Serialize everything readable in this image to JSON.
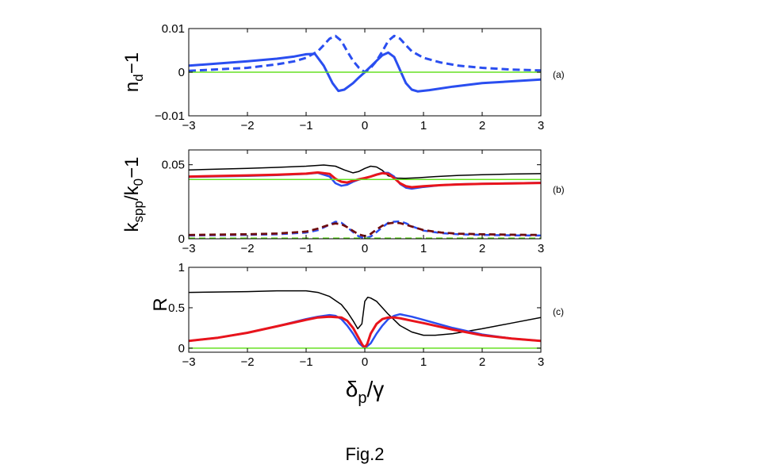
{
  "figure_caption": "Fig.2",
  "colors": {
    "blue": "#2a4ef0",
    "red": "#e8141c",
    "black": "#000000",
    "green": "#66e022",
    "darkred": "#6b0f0f"
  },
  "chart_data": [
    {
      "id": "a",
      "type": "line",
      "panel_label": "(a)",
      "ylabel_main": "n",
      "ylabel_sub": "d",
      "ylabel_tail": "−1",
      "xlim": [
        -3,
        3
      ],
      "ylim": [
        -0.01,
        0.01
      ],
      "xticks": [
        -3,
        -2,
        -1,
        0,
        1,
        2,
        3
      ],
      "xtick_labels": [
        "−3",
        "−2",
        "−1",
        "0",
        "1",
        "2",
        "3"
      ],
      "yticks": [
        -0.01,
        0,
        0.01
      ],
      "ytick_labels": [
        "−0.01",
        "0",
        "0.01"
      ],
      "series": [
        {
          "name": "blue-solid",
          "color": "blue",
          "width": 3,
          "dash": "",
          "x": [
            -3,
            -2,
            -1.5,
            -1.2,
            -1,
            -0.85,
            -0.7,
            -0.55,
            -0.45,
            -0.35,
            -0.2,
            -0.1,
            0,
            0.1,
            0.2,
            0.3,
            0.4,
            0.5,
            0.6,
            0.7,
            0.8,
            0.9,
            1.1,
            1.5,
            2,
            3
          ],
          "y": [
            0.0015,
            0.0025,
            0.0031,
            0.0036,
            0.0041,
            0.0042,
            0.0015,
            -0.0025,
            -0.0043,
            -0.004,
            -0.0025,
            -0.0012,
            0,
            0.0013,
            0.0026,
            0.0039,
            0.0045,
            0.0035,
            0.0005,
            -0.0025,
            -0.004,
            -0.0044,
            -0.0041,
            -0.0033,
            -0.0025,
            -0.0017
          ]
        },
        {
          "name": "blue-dashed",
          "color": "blue",
          "width": 3,
          "dash": "9,5",
          "x": [
            -3,
            -2,
            -1.5,
            -1.2,
            -1,
            -0.8,
            -0.7,
            -0.6,
            -0.5,
            -0.4,
            -0.3,
            -0.2,
            -0.1,
            0,
            0.1,
            0.2,
            0.3,
            0.4,
            0.5,
            0.6,
            0.7,
            0.8,
            1,
            1.3,
            1.6,
            2,
            2.5,
            3
          ],
          "y": [
            0.0003,
            0.001,
            0.0018,
            0.0025,
            0.0033,
            0.0048,
            0.0062,
            0.0077,
            0.0083,
            0.0072,
            0.0048,
            0.0026,
            0.001,
            0,
            0.001,
            0.0026,
            0.0048,
            0.0072,
            0.0083,
            0.0077,
            0.0062,
            0.0048,
            0.0033,
            0.0022,
            0.0015,
            0.001,
            0.0006,
            0.0004
          ]
        },
        {
          "name": "green",
          "color": "green",
          "width": 1.5,
          "dash": "",
          "x": [
            -3,
            3
          ],
          "y": [
            0,
            0
          ]
        }
      ]
    },
    {
      "id": "b",
      "type": "line",
      "panel_label": "(b)",
      "ylabel_main": "k",
      "ylabel_sub": "spp",
      "ylabel_mid": "/k",
      "ylabel_sub2": "0",
      "ylabel_tail": "−1",
      "xlim": [
        -3,
        3
      ],
      "ylim": [
        0,
        0.06
      ],
      "xticks": [
        -3,
        -2,
        -1,
        0,
        1,
        2,
        3
      ],
      "xtick_labels": [
        "−3",
        "−2",
        "−1",
        "0",
        "1",
        "2",
        "3"
      ],
      "yticks": [
        0,
        0.05
      ],
      "ytick_labels": [
        "0",
        "0.05"
      ],
      "series": [
        {
          "name": "black-solid",
          "color": "black",
          "width": 1.5,
          "dash": "",
          "x": [
            -3,
            -2,
            -1.5,
            -1,
            -0.7,
            -0.5,
            -0.35,
            -0.2,
            -0.1,
            0,
            0.1,
            0.2,
            0.3,
            0.4,
            0.55,
            0.7,
            0.9,
            1.2,
            1.6,
            2,
            2.5,
            3
          ],
          "y": [
            0.0465,
            0.0475,
            0.0482,
            0.049,
            0.0498,
            0.049,
            0.0465,
            0.0445,
            0.0455,
            0.0475,
            0.049,
            0.0485,
            0.0462,
            0.0425,
            0.041,
            0.0408,
            0.0412,
            0.042,
            0.0428,
            0.0433,
            0.0437,
            0.044
          ]
        },
        {
          "name": "blue-solid",
          "color": "blue",
          "width": 2.5,
          "dash": "",
          "x": [
            -3,
            -2,
            -1.5,
            -1,
            -0.8,
            -0.6,
            -0.5,
            -0.4,
            -0.3,
            -0.2,
            -0.1,
            0,
            0.1,
            0.2,
            0.3,
            0.4,
            0.5,
            0.6,
            0.7,
            0.8,
            1,
            1.3,
            1.6,
            2,
            2.5,
            3
          ],
          "y": [
            0.0418,
            0.0425,
            0.043,
            0.0438,
            0.0445,
            0.042,
            0.0375,
            0.0358,
            0.0365,
            0.0385,
            0.04,
            0.041,
            0.042,
            0.0435,
            0.0445,
            0.0445,
            0.042,
            0.037,
            0.0345,
            0.0338,
            0.035,
            0.0362,
            0.0368,
            0.0372,
            0.0375,
            0.0378
          ]
        },
        {
          "name": "red-solid",
          "color": "red",
          "width": 3,
          "dash": "",
          "x": [
            -3,
            -2,
            -1.5,
            -1,
            -0.8,
            -0.6,
            -0.5,
            -0.4,
            -0.3,
            -0.2,
            -0.1,
            0,
            0.1,
            0.2,
            0.3,
            0.4,
            0.5,
            0.6,
            0.7,
            0.8,
            1,
            1.3,
            1.6,
            2,
            2.5,
            3
          ],
          "y": [
            0.042,
            0.0428,
            0.0433,
            0.044,
            0.0448,
            0.0438,
            0.0405,
            0.0385,
            0.038,
            0.0392,
            0.0402,
            0.041,
            0.042,
            0.0433,
            0.0443,
            0.0438,
            0.041,
            0.0375,
            0.0355,
            0.0348,
            0.0355,
            0.0362,
            0.0367,
            0.0371,
            0.0374,
            0.0377
          ]
        },
        {
          "name": "green-solid",
          "color": "green",
          "width": 1.5,
          "dash": "",
          "x": [
            -3,
            3
          ],
          "y": [
            0.04,
            0.04
          ]
        },
        {
          "name": "blue-dashed",
          "color": "blue",
          "width": 2.5,
          "dash": "8,5",
          "x": [
            -3,
            -2,
            -1.5,
            -1,
            -0.8,
            -0.6,
            -0.5,
            -0.4,
            -0.3,
            -0.2,
            -0.1,
            0,
            0.1,
            0.2,
            0.3,
            0.4,
            0.5,
            0.6,
            0.7,
            0.8,
            1,
            1.3,
            1.6,
            2,
            2.5,
            3
          ],
          "y": [
            0.0022,
            0.0026,
            0.003,
            0.0042,
            0.0058,
            0.0095,
            0.0115,
            0.0108,
            0.0078,
            0.0045,
            0.0015,
            0.0004,
            0.0015,
            0.0045,
            0.0078,
            0.0108,
            0.0115,
            0.0118,
            0.0105,
            0.0085,
            0.0055,
            0.0038,
            0.003,
            0.0026,
            0.0023,
            0.0022
          ]
        },
        {
          "name": "red-dashed",
          "color": "red",
          "width": 2.5,
          "dash": "8,5",
          "x": [
            -3,
            -2,
            -1.5,
            -1,
            -0.8,
            -0.6,
            -0.5,
            -0.4,
            -0.3,
            -0.2,
            -0.1,
            0,
            0.1,
            0.2,
            0.3,
            0.4,
            0.5,
            0.6,
            0.7,
            0.8,
            1,
            1.3,
            1.6,
            2,
            2.5,
            3
          ],
          "y": [
            0.0025,
            0.003,
            0.0035,
            0.0048,
            0.0068,
            0.0095,
            0.0103,
            0.0098,
            0.0078,
            0.0052,
            0.0028,
            0.0018,
            0.0032,
            0.0062,
            0.0088,
            0.0103,
            0.0108,
            0.0105,
            0.0095,
            0.0082,
            0.0058,
            0.0042,
            0.0034,
            0.003,
            0.0027,
            0.0025
          ]
        },
        {
          "name": "darkred-dashed",
          "color": "darkred",
          "width": 2.5,
          "dash": "8,5",
          "x": [
            -3,
            -2,
            -1.5,
            -1,
            -0.8,
            -0.6,
            -0.5,
            -0.4,
            -0.3,
            -0.2,
            -0.1,
            0,
            0.1,
            0.2,
            0.3,
            0.4,
            0.5,
            0.6,
            0.7,
            0.8,
            1,
            1.3,
            1.6,
            2,
            2.5,
            3
          ],
          "y": [
            0.0026,
            0.0031,
            0.0036,
            0.0049,
            0.0069,
            0.0096,
            0.0104,
            0.0099,
            0.0079,
            0.0053,
            0.0029,
            0.0019,
            0.0033,
            0.0063,
            0.0089,
            0.0104,
            0.0109,
            0.0106,
            0.0096,
            0.0083,
            0.0059,
            0.0043,
            0.0035,
            0.0031,
            0.0028,
            0.0026
          ]
        },
        {
          "name": "green-dashed",
          "color": "green",
          "width": 1.5,
          "dash": "8,5",
          "x": [
            -3,
            3
          ],
          "y": [
            0.0005,
            0.0005
          ]
        }
      ]
    },
    {
      "id": "c",
      "type": "line",
      "panel_label": "(c)",
      "ylabel_main": "R",
      "xlabel_main": "δ",
      "xlabel_sub": "p",
      "xlabel_tail": "/γ",
      "xlim": [
        -3,
        3
      ],
      "ylim": [
        -0.05,
        1
      ],
      "xticks": [
        -3,
        -2,
        -1,
        0,
        1,
        2,
        3
      ],
      "xtick_labels": [
        "−3",
        "−2",
        "−1",
        "0",
        "1",
        "2",
        "3"
      ],
      "yticks": [
        0,
        0.5,
        1
      ],
      "ytick_labels": [
        "0",
        "0.5",
        "1"
      ],
      "series": [
        {
          "name": "black-solid",
          "color": "black",
          "width": 1.5,
          "dash": "",
          "x": [
            -3,
            -2,
            -1.5,
            -1,
            -0.8,
            -0.6,
            -0.4,
            -0.3,
            -0.2,
            -0.12,
            -0.05,
            0,
            0.05,
            0.1,
            0.2,
            0.3,
            0.4,
            0.5,
            0.6,
            0.8,
            1,
            1.2,
            1.5,
            2,
            2.5,
            3
          ],
          "y": [
            0.69,
            0.7,
            0.71,
            0.71,
            0.69,
            0.64,
            0.54,
            0.45,
            0.34,
            0.24,
            0.3,
            0.58,
            0.63,
            0.62,
            0.58,
            0.5,
            0.42,
            0.35,
            0.28,
            0.2,
            0.16,
            0.16,
            0.18,
            0.24,
            0.31,
            0.38
          ]
        },
        {
          "name": "blue-solid",
          "color": "blue",
          "width": 2.5,
          "dash": "",
          "x": [
            -3,
            -2.5,
            -2,
            -1.5,
            -1,
            -0.8,
            -0.6,
            -0.5,
            -0.4,
            -0.3,
            -0.2,
            -0.1,
            0,
            0.1,
            0.2,
            0.3,
            0.4,
            0.5,
            0.6,
            0.8,
            1,
            1.5,
            2,
            2.5,
            3
          ],
          "y": [
            0.09,
            0.13,
            0.19,
            0.27,
            0.36,
            0.39,
            0.41,
            0.4,
            0.36,
            0.28,
            0.18,
            0.06,
            0,
            0.06,
            0.18,
            0.28,
            0.36,
            0.4,
            0.42,
            0.39,
            0.35,
            0.25,
            0.17,
            0.12,
            0.09
          ]
        },
        {
          "name": "red-solid",
          "color": "red",
          "width": 3,
          "dash": "",
          "x": [
            -3,
            -2.5,
            -2,
            -1.5,
            -1,
            -0.8,
            -0.6,
            -0.4,
            -0.3,
            -0.2,
            -0.1,
            -0.04,
            0,
            0.04,
            0.1,
            0.2,
            0.3,
            0.4,
            0.5,
            0.6,
            0.8,
            1,
            1.5,
            2,
            2.5,
            3
          ],
          "y": [
            0.09,
            0.13,
            0.19,
            0.27,
            0.35,
            0.38,
            0.39,
            0.38,
            0.34,
            0.25,
            0.12,
            0.04,
            0.01,
            0.05,
            0.18,
            0.3,
            0.36,
            0.38,
            0.38,
            0.37,
            0.34,
            0.31,
            0.23,
            0.16,
            0.12,
            0.09
          ]
        },
        {
          "name": "green",
          "color": "green",
          "width": 1.5,
          "dash": "",
          "x": [
            -3,
            3
          ],
          "y": [
            0,
            0
          ]
        }
      ]
    }
  ]
}
